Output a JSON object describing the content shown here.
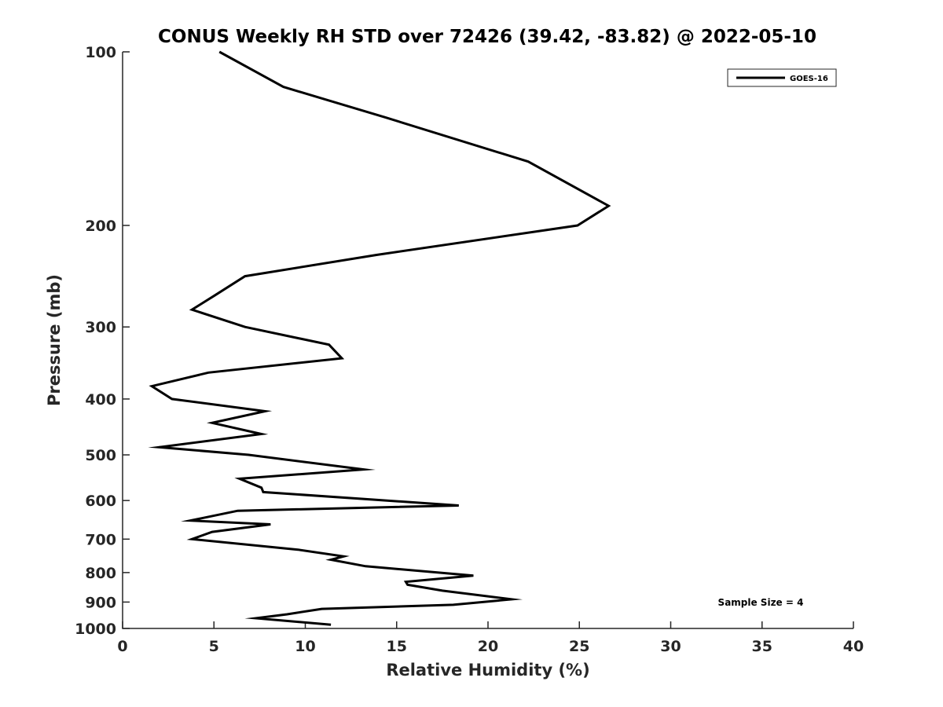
{
  "chart_data": {
    "type": "line",
    "title": "CONUS Weekly RH STD over 72426 (39.42, -83.82) @ 2022-05-10",
    "xlabel": "Relative Humidity (%)",
    "ylabel": "Pressure (mb)",
    "xlim": [
      0,
      40
    ],
    "ylim": [
      100,
      1000
    ],
    "yscale": "log",
    "y_reversed": true,
    "grid": false,
    "xticks": [
      0,
      5,
      10,
      15,
      20,
      25,
      30,
      35,
      40
    ],
    "xtick_labels": [
      "0",
      "5",
      "10",
      "15",
      "20",
      "25",
      "30",
      "35",
      "40"
    ],
    "yticks": [
      100,
      200,
      300,
      400,
      500,
      600,
      700,
      800,
      900,
      1000
    ],
    "ytick_labels": [
      "100",
      "200",
      "300",
      "400",
      "500",
      "600",
      "700",
      "800",
      "900",
      "1000"
    ],
    "legend_position": "top-right",
    "series": [
      {
        "name": "GOES-16",
        "color": "#000000",
        "x": [
          5.3,
          8.8,
          14.4,
          22.2,
          26.6,
          24.9,
          13.9,
          6.7,
          5.0,
          3.8,
          6.7,
          11.3,
          12.0,
          4.7,
          1.6,
          2.7,
          7.8,
          4.9,
          7.6,
          2.0,
          6.9,
          13.2,
          6.4,
          7.6,
          7.7,
          18.4,
          6.3,
          3.7,
          8.1,
          4.9,
          3.8,
          9.6,
          12.1,
          11.4,
          13.3,
          19.2,
          15.5,
          15.6,
          17.5,
          21.3,
          18.1,
          10.9,
          9.0,
          7.3,
          11.4
        ],
        "y": [
          100,
          115,
          130,
          155,
          185,
          200,
          225,
          245,
          265,
          280,
          300,
          322,
          340,
          360,
          380,
          400,
          420,
          440,
          460,
          485,
          500,
          530,
          550,
          570,
          580,
          612,
          625,
          650,
          660,
          680,
          700,
          730,
          750,
          760,
          780,
          810,
          830,
          840,
          860,
          890,
          910,
          925,
          945,
          960,
          985
        ]
      }
    ],
    "annotation": "Sample Size = 4"
  }
}
